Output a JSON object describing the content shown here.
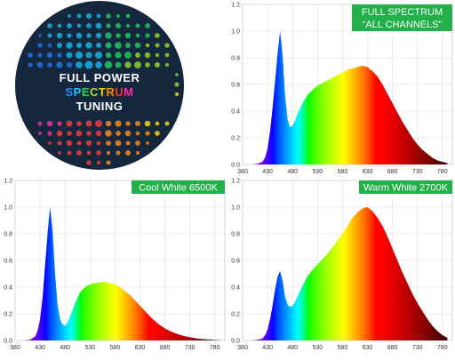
{
  "logo": {
    "line1": "FULL POWER",
    "line2": "SPECTRUM",
    "line3": "TUNING",
    "background": "#14273d",
    "spectrum_letter_colors": [
      "#1e90ff",
      "#22c4ff",
      "#2ed15a",
      "#a6e22e",
      "#ffd400",
      "#ff8a00",
      "#ff2a2a",
      "#ff2aa8"
    ]
  },
  "chart_data": [
    {
      "type": "area",
      "title": "FULL SPECTRUM\n“ALL CHANNELS”",
      "title_lines": [
        "FULL SPECTRUM",
        "“ALL CHANNELS”"
      ],
      "badge_color": "#22b04b",
      "xlabel": "",
      "ylabel": "",
      "xlim": [
        380,
        800
      ],
      "ylim": [
        0,
        1.2
      ],
      "xticks": [
        "380",
        "430",
        "480",
        "530",
        "580",
        "630",
        "680",
        "730",
        "780"
      ],
      "yticks": [
        "0.0",
        "0.2",
        "0.4",
        "0.6",
        "0.8",
        "1.0",
        "1.2"
      ],
      "grid": true,
      "x": [
        400,
        410,
        420,
        425,
        430,
        435,
        440,
        445,
        450,
        455,
        460,
        465,
        470,
        475,
        480,
        485,
        490,
        500,
        510,
        520,
        530,
        540,
        550,
        560,
        570,
        580,
        590,
        600,
        610,
        620,
        630,
        640,
        650,
        660,
        670,
        680,
        690,
        700,
        710,
        720,
        730,
        740,
        750,
        760,
        770,
        780,
        790
      ],
      "values": [
        0,
        0.005,
        0.02,
        0.05,
        0.12,
        0.25,
        0.42,
        0.62,
        0.83,
        1.0,
        0.82,
        0.52,
        0.34,
        0.28,
        0.29,
        0.33,
        0.38,
        0.46,
        0.52,
        0.56,
        0.59,
        0.61,
        0.63,
        0.65,
        0.67,
        0.69,
        0.71,
        0.72,
        0.73,
        0.74,
        0.73,
        0.7,
        0.66,
        0.6,
        0.53,
        0.46,
        0.39,
        0.32,
        0.26,
        0.2,
        0.15,
        0.11,
        0.08,
        0.05,
        0.03,
        0.02,
        0.01
      ]
    },
    {
      "type": "area",
      "title": "Cool White 6500K",
      "title_lines": [
        "Cool White 6500K"
      ],
      "badge_color": "#22b04b",
      "xlabel": "",
      "ylabel": "",
      "xlim": [
        380,
        800
      ],
      "ylim": [
        0,
        1.2
      ],
      "xticks": [
        "380",
        "430",
        "480",
        "530",
        "580",
        "630",
        "680",
        "730",
        "780"
      ],
      "yticks": [
        "0.0",
        "0.2",
        "0.4",
        "0.6",
        "0.8",
        "1.0",
        "1.2"
      ],
      "grid": true,
      "x": [
        400,
        410,
        420,
        425,
        430,
        435,
        440,
        445,
        450,
        455,
        460,
        465,
        470,
        475,
        480,
        485,
        490,
        500,
        510,
        520,
        530,
        540,
        550,
        560,
        570,
        580,
        590,
        600,
        610,
        620,
        630,
        640,
        650,
        660,
        670,
        680,
        690,
        700,
        710,
        720,
        730,
        740,
        750,
        760,
        770,
        780,
        790
      ],
      "values": [
        0,
        0.005,
        0.03,
        0.07,
        0.16,
        0.32,
        0.56,
        0.8,
        1.0,
        0.82,
        0.5,
        0.27,
        0.16,
        0.12,
        0.11,
        0.13,
        0.18,
        0.28,
        0.36,
        0.4,
        0.42,
        0.43,
        0.435,
        0.44,
        0.43,
        0.42,
        0.4,
        0.37,
        0.34,
        0.3,
        0.26,
        0.22,
        0.18,
        0.145,
        0.115,
        0.09,
        0.07,
        0.055,
        0.042,
        0.032,
        0.024,
        0.017,
        0.012,
        0.008,
        0.005,
        0.003,
        0.002
      ]
    },
    {
      "type": "area",
      "title": "Warm White 2700K",
      "title_lines": [
        "Warm White 2700K"
      ],
      "badge_color": "#22b04b",
      "xlabel": "",
      "ylabel": "",
      "xlim": [
        380,
        800
      ],
      "ylim": [
        0,
        1.2
      ],
      "xticks": [
        "380",
        "430",
        "480",
        "530",
        "580",
        "630",
        "680",
        "730",
        "780"
      ],
      "yticks": [
        "0.0",
        "0.2",
        "0.4",
        "0.6",
        "0.8",
        "1.0",
        "1.2"
      ],
      "grid": true,
      "x": [
        400,
        410,
        420,
        425,
        430,
        435,
        440,
        445,
        450,
        455,
        460,
        465,
        470,
        475,
        480,
        485,
        490,
        500,
        510,
        520,
        530,
        540,
        550,
        560,
        570,
        580,
        590,
        600,
        610,
        620,
        630,
        640,
        650,
        660,
        670,
        680,
        690,
        700,
        710,
        720,
        730,
        740,
        750,
        760,
        770,
        780,
        790
      ],
      "values": [
        0,
        0.005,
        0.015,
        0.04,
        0.08,
        0.16,
        0.26,
        0.38,
        0.48,
        0.52,
        0.45,
        0.33,
        0.27,
        0.25,
        0.26,
        0.29,
        0.33,
        0.41,
        0.48,
        0.53,
        0.57,
        0.61,
        0.65,
        0.7,
        0.75,
        0.8,
        0.86,
        0.92,
        0.96,
        0.99,
        1.0,
        0.97,
        0.92,
        0.86,
        0.78,
        0.69,
        0.6,
        0.51,
        0.43,
        0.35,
        0.28,
        0.22,
        0.16,
        0.11,
        0.07,
        0.04,
        0.02
      ]
    }
  ]
}
